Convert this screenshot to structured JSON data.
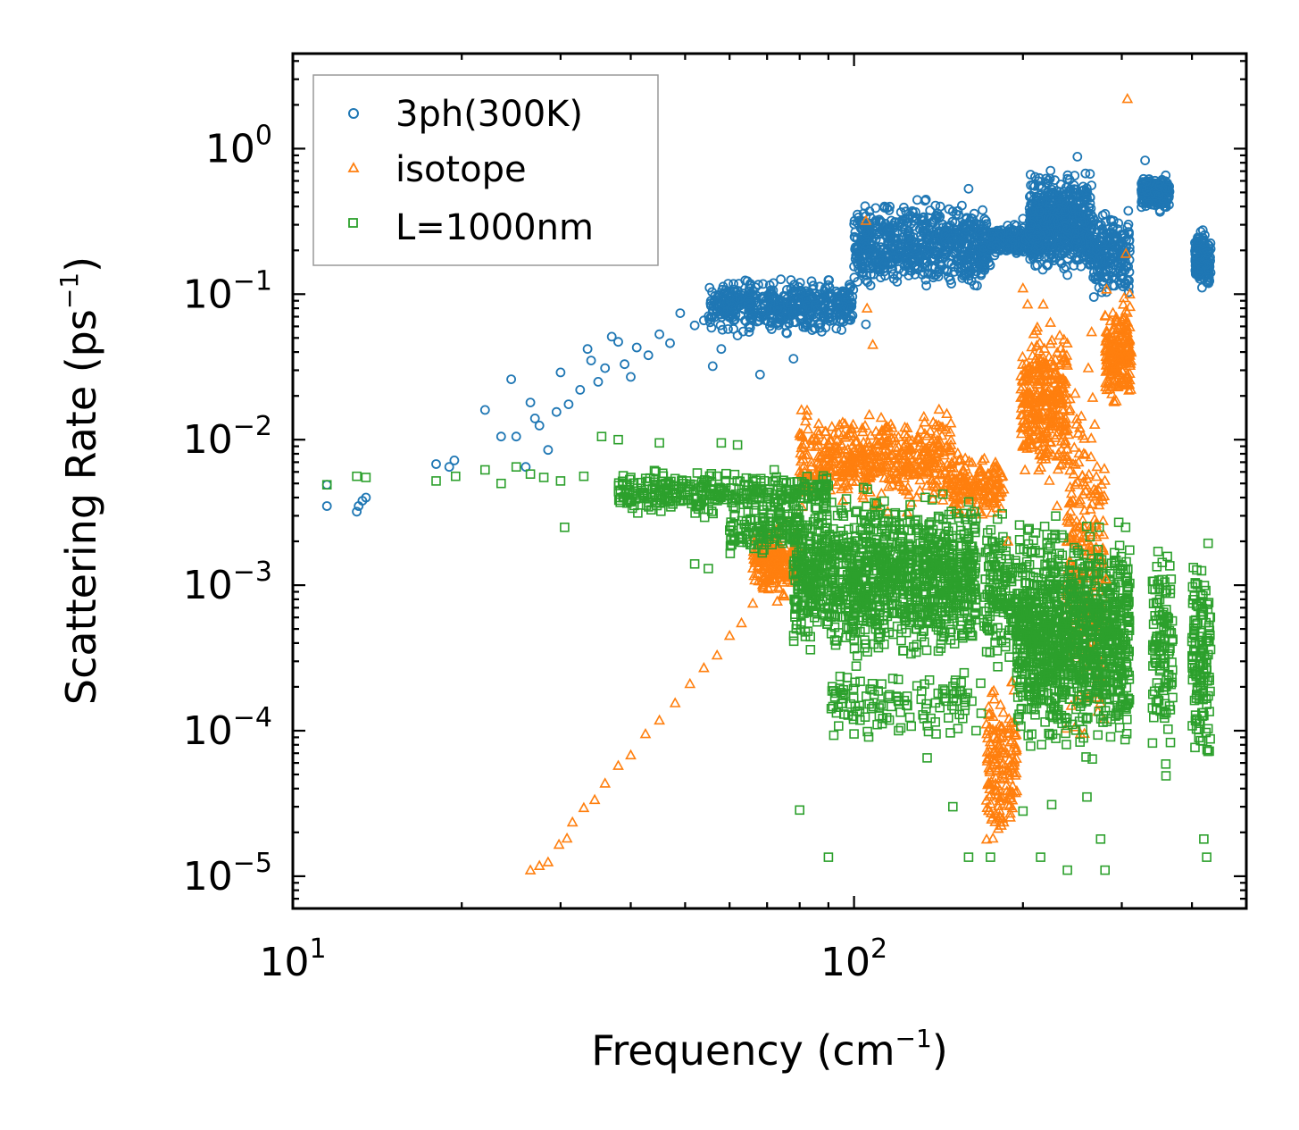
{
  "chart_data": {
    "type": "scatter",
    "xscale": "log",
    "yscale": "log",
    "xlim": [
      10,
      500
    ],
    "ylim": [
      6e-06,
      4.5
    ],
    "xlabel": "Frequency (cm",
    "xlabel_sup": "−1",
    "xlabel_end": ")",
    "ylabel": "Scattering Rate (ps",
    "ylabel_sup": "−1",
    "ylabel_end": ")",
    "xticks": [
      {
        "value": 10,
        "base": "10",
        "exp": "1"
      },
      {
        "value": 100,
        "base": "10",
        "exp": "2"
      }
    ],
    "yticks": [
      {
        "value": 1,
        "base": "10",
        "exp": "0"
      },
      {
        "value": 0.1,
        "base": "10",
        "exp": "−1"
      },
      {
        "value": 0.01,
        "base": "10",
        "exp": "−2"
      },
      {
        "value": 0.001,
        "base": "10",
        "exp": "−3"
      },
      {
        "value": 0.0001,
        "base": "10",
        "exp": "−4"
      },
      {
        "value": 1e-05,
        "base": "10",
        "exp": "−5"
      }
    ],
    "legend_position": "top-left",
    "series": [
      {
        "name": "3ph(300K)",
        "marker": "circle",
        "color": "#1f77b4",
        "points": [
          [
            11.5,
            0.0035
          ],
          [
            11.5,
            0.0049
          ],
          [
            13.0,
            0.0032
          ],
          [
            13.1,
            0.0035
          ],
          [
            13.3,
            0.0038
          ],
          [
            13.5,
            0.004
          ],
          [
            18.0,
            0.0068
          ],
          [
            19.0,
            0.0065
          ],
          [
            19.4,
            0.0072
          ],
          [
            22.0,
            0.016
          ],
          [
            23.5,
            0.0105
          ],
          [
            24.5,
            0.026
          ],
          [
            25.0,
            0.0105
          ],
          [
            26.0,
            0.0065
          ],
          [
            26.5,
            0.018
          ],
          [
            27.0,
            0.014
          ],
          [
            27.5,
            0.0125
          ],
          [
            28.5,
            0.0085
          ],
          [
            29.5,
            0.0155
          ],
          [
            30.0,
            0.029
          ],
          [
            31.0,
            0.0175
          ],
          [
            32.5,
            0.022
          ],
          [
            33.5,
            0.042
          ],
          [
            34.0,
            0.035
          ],
          [
            35.0,
            0.025
          ],
          [
            36.0,
            0.031
          ],
          [
            37.0,
            0.051
          ],
          [
            38.0,
            0.047
          ],
          [
            39.0,
            0.033
          ],
          [
            40.0,
            0.027
          ],
          [
            41.0,
            0.043
          ],
          [
            43.0,
            0.038
          ],
          [
            45.0,
            0.053
          ],
          [
            47.0,
            0.046
          ],
          [
            49.0,
            0.074
          ],
          [
            52.0,
            0.061
          ],
          [
            54.0,
            0.066
          ],
          [
            56.0,
            0.032
          ],
          [
            58.0,
            0.042
          ],
          [
            60.0,
            0.071
          ],
          [
            62.0,
            0.052
          ],
          [
            65.0,
            0.055
          ],
          [
            68.0,
            0.028
          ],
          [
            71.0,
            0.087
          ],
          [
            74.0,
            0.068
          ],
          [
            78.0,
            0.036
          ],
          [
            82.0,
            0.105
          ],
          [
            86.0,
            0.079
          ],
          [
            90.0,
            0.125
          ],
          [
            95.0,
            0.066
          ],
          [
            100.0,
            0.155
          ],
          [
            105.0,
            0.062
          ],
          [
            110.0,
            0.19
          ],
          [
            120.0,
            0.24
          ],
          [
            130.0,
            0.15
          ],
          [
            140.0,
            0.33
          ],
          [
            150.0,
            0.37
          ],
          [
            160.0,
            0.53
          ],
          [
            170.0,
            0.21
          ],
          [
            180.0,
            0.25
          ],
          [
            200.0,
            0.33
          ],
          [
            220.0,
            0.43
          ],
          [
            240.0,
            0.62
          ],
          [
            250.0,
            0.88
          ],
          [
            260.0,
            0.46
          ],
          [
            270.0,
            0.2
          ],
          [
            290.0,
            0.32
          ],
          [
            330.0,
            0.83
          ],
          [
            335.0,
            0.42
          ],
          [
            350.0,
            0.55
          ],
          [
            410.0,
            0.23
          ],
          [
            425.0,
            0.16
          ]
        ],
        "clouds": [
          {
            "x": [
              55,
              100
            ],
            "y": [
              0.05,
              0.14
            ],
            "n": 500
          },
          {
            "x": [
              100,
              175
            ],
            "y": [
              0.09,
              0.5
            ],
            "n": 700
          },
          {
            "x": [
              175,
              215
            ],
            "y": [
              0.17,
              0.32
            ],
            "n": 250
          },
          {
            "x": [
              205,
              265
            ],
            "y": [
              0.12,
              0.8
            ],
            "n": 600
          },
          {
            "x": [
              262,
              310
            ],
            "y": [
              0.08,
              0.45
            ],
            "n": 220
          },
          {
            "x": [
              325,
              365
            ],
            "y": [
              0.35,
              0.7
            ],
            "n": 200
          },
          {
            "x": [
              405,
              432
            ],
            "y": [
              0.1,
              0.3
            ],
            "n": 150
          }
        ]
      },
      {
        "name": "isotope",
        "marker": "triangle",
        "color": "#ff7f0e",
        "points": [
          [
            26.5,
            1.1e-05
          ],
          [
            27.5,
            1.18e-05
          ],
          [
            28.5,
            1.25e-05
          ],
          [
            29.8,
            1.65e-05
          ],
          [
            30.8,
            1.82e-05
          ],
          [
            31.5,
            2.35e-05
          ],
          [
            33.0,
            2.95e-05
          ],
          [
            34.5,
            3.35e-05
          ],
          [
            36.0,
            4.35e-05
          ],
          [
            38.0,
            5.75e-05
          ],
          [
            40.0,
            6.8e-05
          ],
          [
            42.5,
            9.5e-05
          ],
          [
            45.0,
            0.000118
          ],
          [
            48.0,
            0.000155
          ],
          [
            51.0,
            0.00021
          ],
          [
            54.0,
            0.00027
          ],
          [
            57.0,
            0.00033
          ],
          [
            60.0,
            0.00045
          ],
          [
            63.0,
            0.00055
          ],
          [
            66.0,
            0.00075
          ],
          [
            69.0,
            0.00095
          ],
          [
            105.0,
            0.32
          ],
          [
            105.5,
            0.08
          ],
          [
            108.0,
            0.045
          ],
          [
            112.0,
            0.0065
          ],
          [
            188.0,
            0.002
          ],
          [
            200.0,
            0.11
          ],
          [
            230.0,
            0.0035
          ],
          [
            265.0,
            0.055
          ],
          [
            281.0,
            0.0011
          ],
          [
            305.0,
            0.19
          ],
          [
            307.0,
            2.2
          ],
          [
            310.0,
            0.1
          ]
        ],
        "clouds": [
          {
            "x": [
              66,
              80
            ],
            "y": [
              0.0007,
              0.003
            ],
            "n": 200
          },
          {
            "x": [
              80,
              150
            ],
            "y": [
              0.003,
              0.018
            ],
            "n": 500
          },
          {
            "x": [
              150,
              185
            ],
            "y": [
              0.0025,
              0.009
            ],
            "n": 150
          },
          {
            "x": [
              172,
              195
            ],
            "y": [
              1.1e-05,
              0.0003
            ],
            "n": 160
          },
          {
            "x": [
              198,
              240
            ],
            "y": [
              0.004,
              0.09
            ],
            "n": 350
          },
          {
            "x": [
              238,
              280
            ],
            "y": [
              4e-05,
              0.06
            ],
            "n": 250
          },
          {
            "x": [
              280,
              312
            ],
            "y": [
              0.015,
              0.12
            ],
            "n": 200
          }
        ]
      },
      {
        "name": "L=1000nm",
        "marker": "square",
        "color": "#2ca02c",
        "points": [
          [
            11.5,
            0.0049
          ],
          [
            13.0,
            0.0056
          ],
          [
            13.5,
            0.0055
          ],
          [
            18.0,
            0.0052
          ],
          [
            19.5,
            0.0056
          ],
          [
            22.0,
            0.0062
          ],
          [
            23.5,
            0.005
          ],
          [
            25.0,
            0.0065
          ],
          [
            26.5,
            0.0058
          ],
          [
            28.0,
            0.0055
          ],
          [
            30.0,
            0.0052
          ],
          [
            30.5,
            0.0025
          ],
          [
            33.0,
            0.0056
          ],
          [
            35.5,
            0.0105
          ],
          [
            38.0,
            0.01
          ],
          [
            40.0,
            0.0055
          ],
          [
            45.0,
            0.0095
          ],
          [
            48.0,
            0.0054
          ],
          [
            52.0,
            0.0014
          ],
          [
            55.0,
            0.0013
          ],
          [
            58.0,
            0.0095
          ],
          [
            62.0,
            0.0092
          ],
          [
            80.0,
            2.85e-05
          ],
          [
            90.0,
            1.35e-05
          ],
          [
            92.0,
            9.3e-05
          ],
          [
            100.0,
            9.5e-05
          ],
          [
            110.0,
            0.00011
          ],
          [
            120.0,
            0.0001
          ],
          [
            135.0,
            6.5e-05
          ],
          [
            140.0,
            9.5e-05
          ],
          [
            150.0,
            3e-05
          ],
          [
            160.0,
            1.35e-05
          ],
          [
            165.0,
            0.0001
          ],
          [
            175.0,
            1.35e-05
          ],
          [
            200.0,
            2.8e-05
          ],
          [
            215.0,
            1.35e-05
          ],
          [
            225.0,
            3.1e-05
          ],
          [
            240.0,
            1.1e-05
          ],
          [
            260.0,
            3.5e-05
          ],
          [
            275.0,
            1.8e-05
          ],
          [
            280.0,
            1.1e-05
          ],
          [
            420.0,
            1.8e-05
          ],
          [
            425.0,
            1.35e-05
          ]
        ],
        "clouds": [
          {
            "x": [
              38,
              90
            ],
            "y": [
              0.0028,
              0.0065
            ],
            "n": 350
          },
          {
            "x": [
              60,
              80
            ],
            "y": [
              0.0014,
              0.004
            ],
            "n": 120
          },
          {
            "x": [
              78,
              165
            ],
            "y": [
              0.00025,
              0.0055
            ],
            "n": 1200
          },
          {
            "x": [
              90,
              170
            ],
            "y": [
              8e-05,
              0.0003
            ],
            "n": 120
          },
          {
            "x": [
              170,
              195
            ],
            "y": [
              0.0002,
              0.004
            ],
            "n": 150
          },
          {
            "x": [
              195,
              310
            ],
            "y": [
              5e-05,
              0.004
            ],
            "n": 1100
          },
          {
            "x": [
              340,
              370
            ],
            "y": [
              3.5e-05,
              0.004
            ],
            "n": 120
          },
          {
            "x": [
              400,
              432
            ],
            "y": [
              3e-05,
              0.003
            ],
            "n": 140
          }
        ]
      }
    ]
  }
}
